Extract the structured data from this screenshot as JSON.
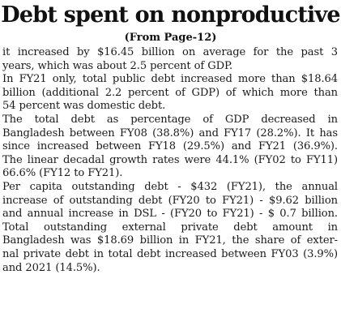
{
  "headline": "Debt spent on nonproductive",
  "jump_line": "(From Page-12)",
  "lines": [
    {
      "text": "it increased by $16.45 billion on average for the past 3",
      "align": "justify"
    },
    {
      "text": "years, which was about 2.5 percent of GDP.",
      "align": "left"
    },
    {
      "text": "In FY21 only, total public debt increased more than $18.64",
      "align": "justify"
    },
    {
      "text": "billion (additional 2.2 percent of GDP) of which more than",
      "align": "justify"
    },
    {
      "text": "54 percent was domestic debt.",
      "align": "left"
    },
    {
      "text": "The total debt as percentage of GDP decreased in",
      "align": "justify"
    },
    {
      "text": "Bangladesh between FY08 (38.8%) and FY17 (28.2%). It has",
      "align": "justify"
    },
    {
      "text": "since increased between FY18 (29.5%) and FY21 (36.9%).",
      "align": "justify"
    },
    {
      "text": "The linear decadal growth rates were 44.1% (FY02 to FY11)",
      "align": "justify"
    },
    {
      "text": "66.6% (FY12 to FY21).",
      "align": "left"
    },
    {
      "text": "Per capita outstanding debt - $432 (FY21), the annual",
      "align": "justify"
    },
    {
      "text": "increase of outstanding debt (FY20 to FY21) - $9.62 billion",
      "align": "justify"
    },
    {
      "text": "and annual increase in DSL - (FY20 to FY21) - $ 0.7 billion.",
      "align": "justify"
    },
    {
      "text": "Total outstanding external private debt amount in",
      "align": "justify"
    },
    {
      "text": "Bangladesh was $18.69 billion in FY21, the share of exter-",
      "align": "justify"
    },
    {
      "text": "nal private debt in total debt increased between FY03 (3.9%)",
      "align": "justify"
    },
    {
      "text": "and 2021 (14.5%).",
      "align": "left"
    }
  ]
}
